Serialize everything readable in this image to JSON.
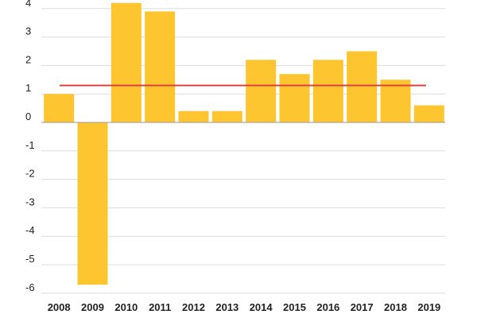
{
  "chart_data": {
    "type": "bar",
    "categories": [
      "2008",
      "2009",
      "2010",
      "2011",
      "2012",
      "2013",
      "2014",
      "2015",
      "2016",
      "2017",
      "2018",
      "2019"
    ],
    "values": [
      1.0,
      -5.7,
      4.2,
      3.9,
      0.4,
      0.4,
      2.2,
      1.7,
      2.2,
      2.5,
      1.5,
      0.6
    ],
    "reference_line": {
      "value": 1.3
    },
    "yticks": [
      4,
      3,
      2,
      1,
      0,
      -1,
      -2,
      -3,
      -4,
      -5,
      -6
    ],
    "ylim": [
      -6.2,
      4.2
    ],
    "grid": true,
    "colors": {
      "bar": "#FDC530",
      "reference_line": "#E0403A",
      "grid": "#DDDDDD",
      "zero_line": "#999999"
    }
  }
}
